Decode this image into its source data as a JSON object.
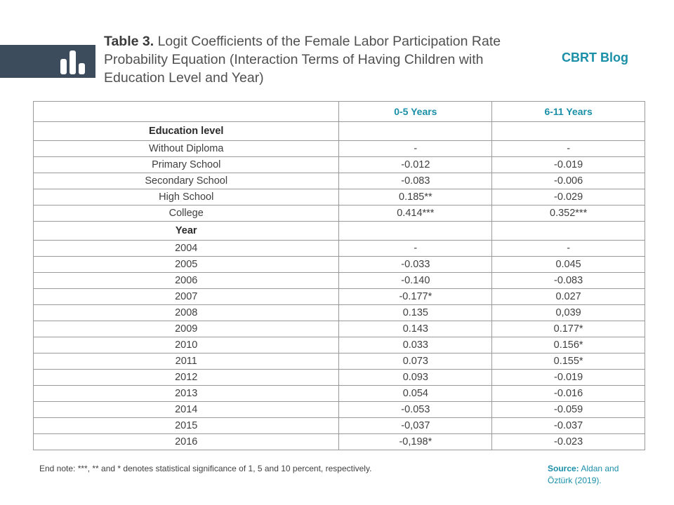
{
  "header": {
    "title_prefix": "Table 3.",
    "title_text": " Logit Coefficients of the Female Labor Participation Rate  Probability Equation (Interaction Terms of Having Children with Education Level and Year)",
    "brand": "CBRT Blog",
    "logo_icon": "bar-chart-icon",
    "logo_color": "#3d4c5d",
    "accent_color": "#1a8fa8"
  },
  "table": {
    "columns": [
      "",
      "0-5 Years",
      "6-11 Years"
    ],
    "sections": [
      {
        "label": "Education level",
        "rows": [
          [
            "Without Diploma",
            "-",
            "-"
          ],
          [
            "Primary School",
            "-0.012",
            "-0.019"
          ],
          [
            "Secondary School",
            "-0.083",
            "-0.006"
          ],
          [
            "High School",
            "0.185**",
            "-0.029"
          ],
          [
            "College",
            "0.414***",
            "0.352***"
          ]
        ]
      },
      {
        "label": "Year",
        "rows": [
          [
            "2004",
            "-",
            "-"
          ],
          [
            "2005",
            "-0.033",
            "0.045"
          ],
          [
            "2006",
            "-0.140",
            "-0.083"
          ],
          [
            "2007",
            "-0.177*",
            "0.027"
          ],
          [
            "2008",
            "0.135",
            "0,039"
          ],
          [
            "2009",
            "0.143",
            "0.177*"
          ],
          [
            "2010",
            "0.033",
            "0.156*"
          ],
          [
            "2011",
            "0.073",
            "0.155*"
          ],
          [
            "2012",
            "0.093",
            "-0.019"
          ],
          [
            "2013",
            "0.054",
            "-0.016"
          ],
          [
            "2014",
            "-0.053",
            "-0.059"
          ],
          [
            "2015",
            "-0,037",
            "-0.037"
          ],
          [
            "2016",
            "-0,198*",
            "-0.023"
          ]
        ]
      }
    ]
  },
  "footer": {
    "endnote": "End note: ***, ** and * denotes statistical significance of 1, 5 and 10 percent, respectively.",
    "source_label": "Source:",
    "source_text": " Aldan and Öztürk (2019)."
  }
}
